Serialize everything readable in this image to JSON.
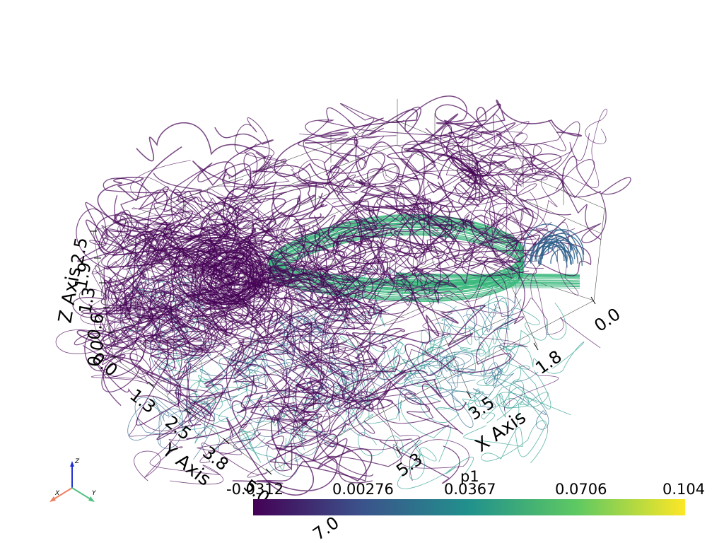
{
  "scene": {
    "x_axis": {
      "title": "X Axis",
      "ticks": [
        "0.0",
        "1.8",
        "3.5",
        "5.3",
        "7.0"
      ]
    },
    "y_axis": {
      "title": "Y Axis",
      "ticks": [
        "0.0",
        "1.3",
        "2.5",
        "3.8",
        "5.0"
      ]
    },
    "z_axis": {
      "title": "Z Axis",
      "ticks": [
        "0.0",
        "0.6",
        "1.3",
        "1.9",
        "2.5"
      ]
    }
  },
  "colorbar": {
    "title": "p1",
    "ticks": [
      "-0.0312",
      "0.00276",
      "0.0367",
      "0.0706",
      "0.104"
    ],
    "colormap": [
      "#440154",
      "#3b528b",
      "#21918c",
      "#5ec962",
      "#fde725"
    ]
  },
  "orientation_widget": {
    "x_label": "X",
    "y_label": "Y",
    "z_label": "Z",
    "x_color": "#f08060",
    "y_color": "#50c080",
    "z_color": "#2030d0"
  },
  "colors": {
    "streamline_dark": "#440154",
    "streamline_mid": "#31688e",
    "streamline_teal": "#35b779",
    "grid": "#000000"
  }
}
